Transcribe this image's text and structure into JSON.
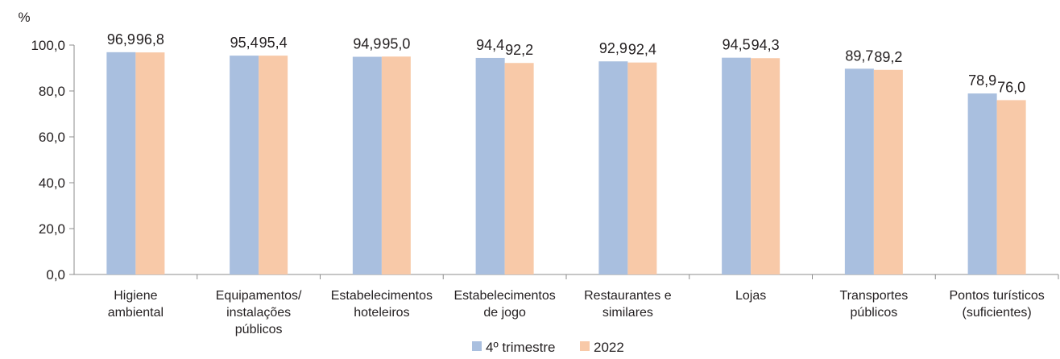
{
  "chart_data": {
    "type": "bar",
    "ylabel": "%",
    "ylim": [
      0,
      100
    ],
    "yticks": [
      "0,0",
      "20,0",
      "40,0",
      "60,0",
      "80,0",
      "100,0"
    ],
    "categories": [
      [
        "Higiene",
        "ambiental"
      ],
      [
        "Equipamentos/",
        "instalações",
        "públicos"
      ],
      [
        "Estabelecimentos",
        "hoteleiros"
      ],
      [
        "Estabelecimentos",
        "de jogo"
      ],
      [
        "Restaurantes e",
        "similares"
      ],
      [
        "Lojas"
      ],
      [
        "Transportes",
        "públicos"
      ],
      [
        "Pontos turísticos",
        "(suficientes)"
      ]
    ],
    "series": [
      {
        "name": "4º trimestre",
        "color": "#a9bfdf",
        "values": [
          96.9,
          95.4,
          94.9,
          94.4,
          92.9,
          94.5,
          89.7,
          78.9
        ],
        "labels": [
          "96,9",
          "95,4",
          "94,9",
          "94,4",
          "92,9",
          "94,5",
          "89,7",
          "78,9"
        ]
      },
      {
        "name": "2022",
        "color": "#f8c9a8",
        "values": [
          96.8,
          95.4,
          95.0,
          92.2,
          92.4,
          94.3,
          89.2,
          76.0
        ],
        "labels": [
          "96,8",
          "95,4",
          "95,0",
          "92,2",
          "92,4",
          "94,3",
          "89,2",
          "76,0"
        ]
      }
    ],
    "grid": false,
    "legend_position": "bottom"
  }
}
